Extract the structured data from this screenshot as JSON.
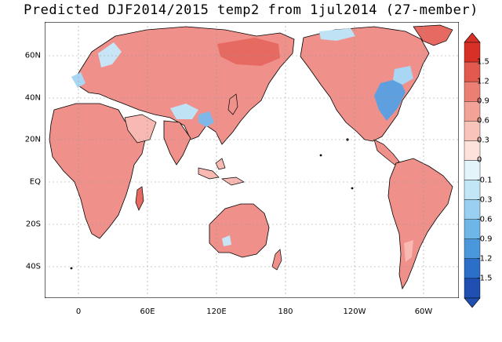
{
  "title": "Predicted DJF2014/2015 temp2 from 1jul2014 (27-member)",
  "latitude_labels": [
    "60N",
    "40N",
    "20N",
    "EQ",
    "20S",
    "40S"
  ],
  "longitude_labels": [
    "0",
    "60E",
    "120E",
    "180",
    "120W",
    "60W"
  ],
  "colorbar": {
    "labels": [
      "1.5",
      "1.2",
      "0.9",
      "0.6",
      "0.3",
      "0",
      "-0.1",
      "-0.3",
      "-0.6",
      "-0.9",
      "-1.2",
      "-1.5"
    ],
    "colors": [
      "#d73027",
      "#e25a4d",
      "#ec7f73",
      "#f3a297",
      "#f8c4ba",
      "#fde2dc",
      "#e4f4fb",
      "#c3e6f6",
      "#99cff0",
      "#6fb6e8",
      "#4b97dc",
      "#2c6fc8",
      "#1f4fb0"
    ]
  },
  "map_colors": {
    "ocean": "#ffffff",
    "land_warm": "#f0908a",
    "land_warmer": "#e66a62",
    "land_mild": "#f7b9b1",
    "land_cool": "#bfe2f5",
    "land_cold": "#5e9fe0",
    "coast": "#000000",
    "gridline": "#9a9a9a"
  }
}
